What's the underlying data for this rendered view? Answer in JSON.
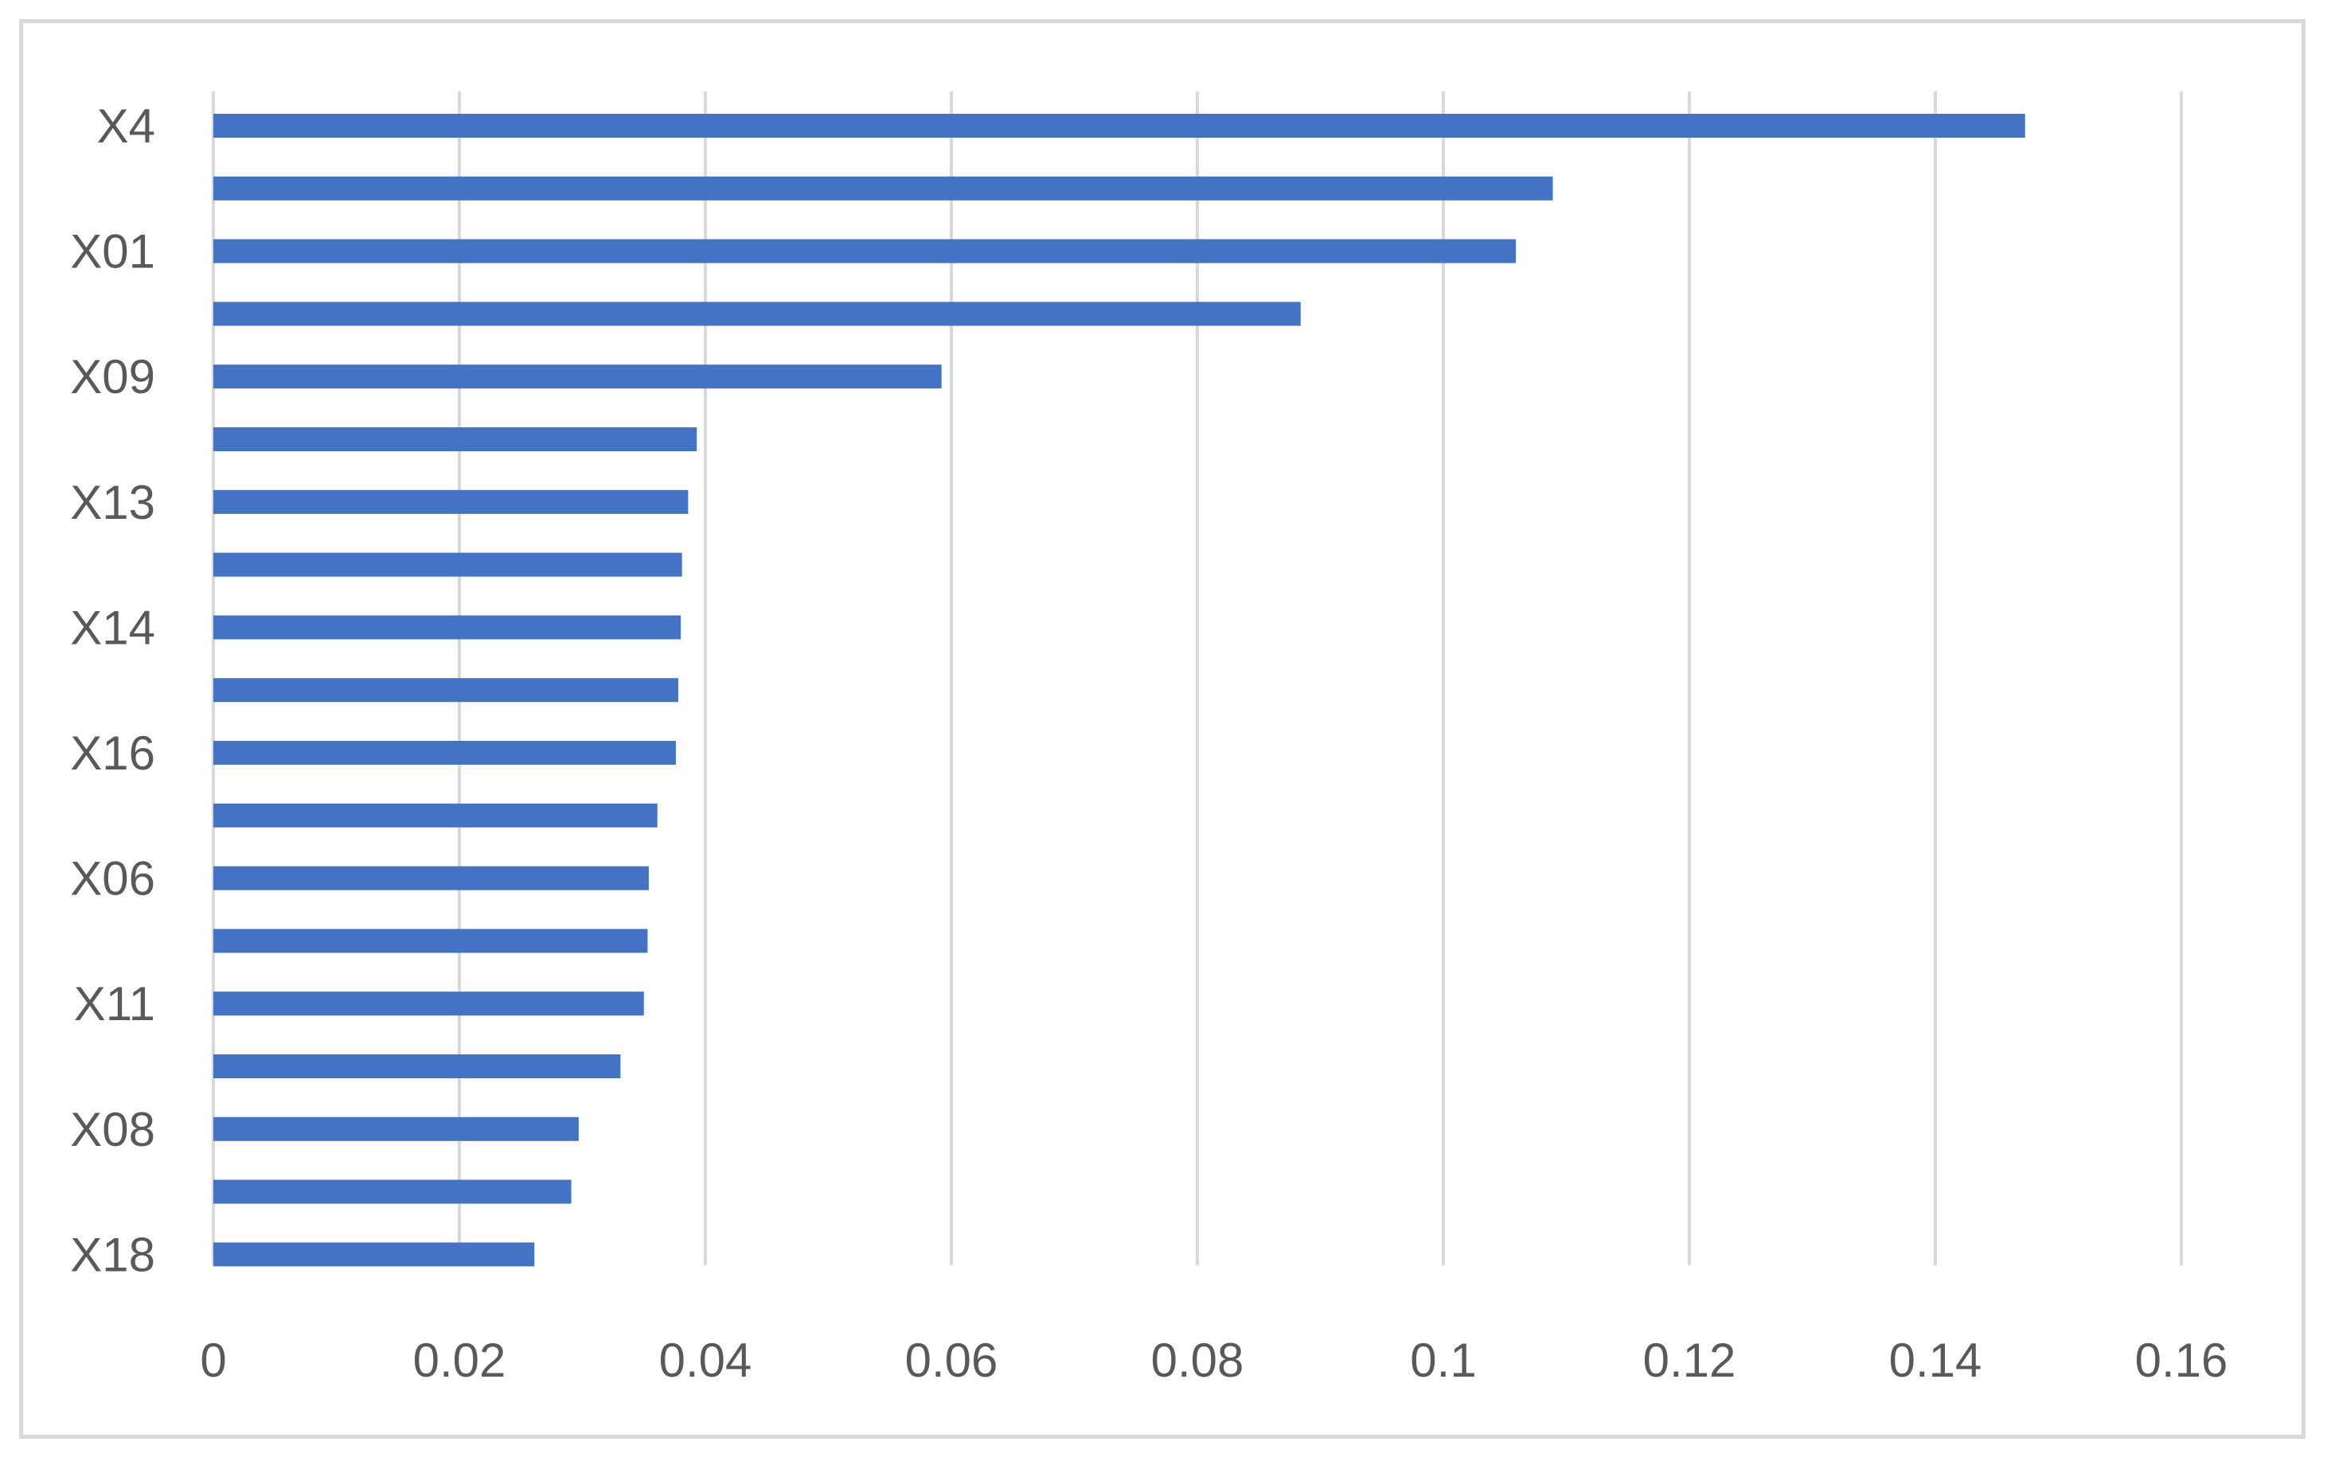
{
  "chart_data": {
    "type": "bar",
    "orientation": "horizontal",
    "title": "",
    "xlabel": "",
    "ylabel": "",
    "categories": [
      "X4",
      "",
      "X01",
      "",
      "X09",
      "",
      "X13",
      "",
      "X14",
      "",
      "X16",
      "",
      "X06",
      "",
      "X11",
      "",
      "X08",
      "",
      "X18"
    ],
    "values": [
      0.1473,
      0.1089,
      0.1059,
      0.0884,
      0.0592,
      0.0393,
      0.0386,
      0.0381,
      0.038,
      0.0378,
      0.0376,
      0.0361,
      0.0354,
      0.0353,
      0.035,
      0.0331,
      0.0297,
      0.0291,
      0.0261
    ],
    "xlim": [
      0,
      0.16
    ],
    "xticks": [
      "0",
      "0.02",
      "0.04",
      "0.06",
      "0.08",
      "0.1",
      "0.12",
      "0.14",
      "0.16"
    ],
    "grid": true,
    "legend": "none",
    "colors": {
      "bar": "#4472C4",
      "grid": "#d9d9d9",
      "text": "#595959",
      "frame": "#d9d9d9"
    }
  }
}
